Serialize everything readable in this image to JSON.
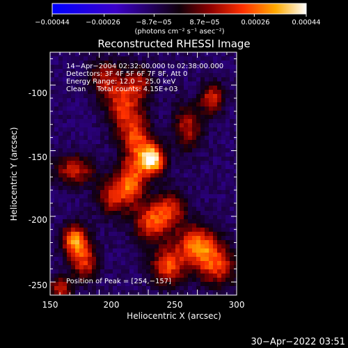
{
  "colorbar": {
    "tick_labels": [
      "−0.00044",
      "−0.00026",
      "−8.7e−05",
      "8.7e−05",
      "0.00026",
      "0.00044"
    ],
    "tick_values": [
      -0.00044,
      -0.00026,
      -8.7e-05,
      8.7e-05,
      0.00026,
      0.00044
    ],
    "range": [
      -0.00044,
      0.00044
    ],
    "units": "(photons cm⁻² s⁻¹ asec⁻²)"
  },
  "chart_data": {
    "type": "heatmap",
    "title": "Reconstructed RHESSI Image",
    "xlabel": "Heliocentric X (arcsec)",
    "ylabel": "Heliocentric Y (arcsec)",
    "xlim": [
      150,
      340
    ],
    "ylim": [
      -260,
      -75
    ],
    "x_ticks": [
      150,
      200,
      250,
      300
    ],
    "y_ticks": [
      -100,
      -150,
      -200,
      -250
    ],
    "annotations": [
      "14−Apr−2004 02:32:00.000 to 02:38:00.000",
      "Detectors: 3F 4F 5F 6F 7F 8F, Att 0",
      "Energy Range: 12.0 − 25.0 keV",
      "Clean     Total counts: 4.15E+03"
    ],
    "peak_label": "Position of Peak = [254,−157]",
    "peak": {
      "x": 254,
      "y": -157
    },
    "sources": [
      {
        "x": 254,
        "y": -157,
        "flux": 0.00044,
        "sx": 9,
        "sy": 8
      },
      {
        "x": 238,
        "y": -140,
        "flux": 0.00022,
        "sx": 10,
        "sy": 14
      },
      {
        "x": 232,
        "y": -175,
        "flux": 0.00026,
        "sx": 10,
        "sy": 12
      },
      {
        "x": 222,
        "y": -115,
        "flux": 0.00018,
        "sx": 10,
        "sy": 14
      },
      {
        "x": 252,
        "y": -205,
        "flux": 0.0002,
        "sx": 12,
        "sy": 10
      },
      {
        "x": 272,
        "y": -195,
        "flux": 0.00016,
        "sx": 12,
        "sy": 10
      },
      {
        "x": 300,
        "y": -222,
        "flux": 0.0003,
        "sx": 14,
        "sy": 10
      },
      {
        "x": 320,
        "y": -238,
        "flux": 0.0002,
        "sx": 14,
        "sy": 10
      },
      {
        "x": 270,
        "y": -238,
        "flux": 0.00022,
        "sx": 12,
        "sy": 10
      },
      {
        "x": 175,
        "y": -218,
        "flux": 0.0003,
        "sx": 9,
        "sy": 8
      },
      {
        "x": 185,
        "y": -235,
        "flux": 0.00018,
        "sx": 10,
        "sy": 10
      },
      {
        "x": 175,
        "y": -165,
        "flux": 0.00016,
        "sx": 14,
        "sy": 8
      },
      {
        "x": 315,
        "y": -110,
        "flux": 0.00018,
        "sx": 8,
        "sy": 8
      },
      {
        "x": 290,
        "y": -132,
        "flux": 0.00014,
        "sx": 10,
        "sy": 12
      },
      {
        "x": 160,
        "y": -255,
        "flux": 0.00016,
        "sx": 8,
        "sy": 6
      },
      {
        "x": 205,
        "y": -95,
        "flux": 0.00012,
        "sx": 10,
        "sy": 10
      },
      {
        "x": 240,
        "y": -100,
        "flux": 0.00012,
        "sx": 10,
        "sy": 10
      },
      {
        "x": 212,
        "y": -185,
        "flux": 0.00014,
        "sx": 10,
        "sy": 10
      }
    ],
    "background_flux": -0.0001
  },
  "timestamp": "30−Apr−2022 03:51"
}
